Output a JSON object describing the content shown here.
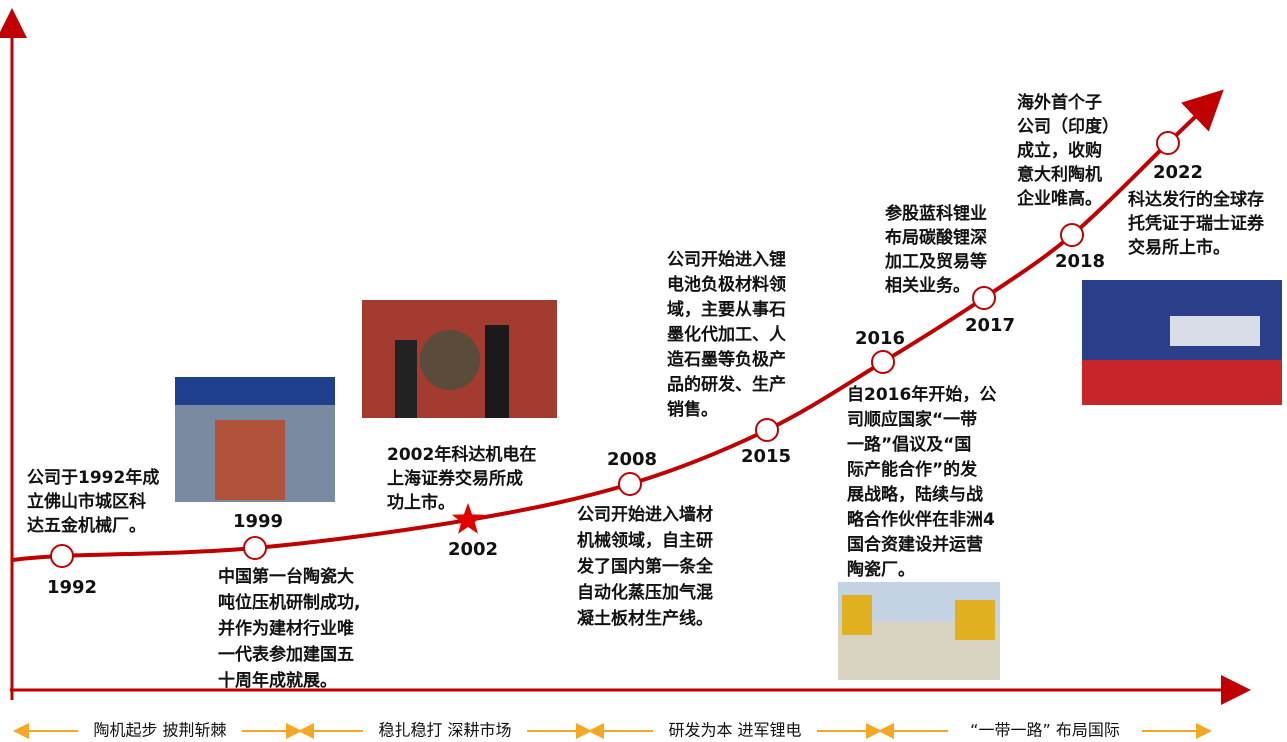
{
  "milestones": [
    {
      "year": "1992",
      "text": [
        "公司于1992年成",
        "立佛山市城区科",
        "达五金机械厂。"
      ]
    },
    {
      "year": "1999",
      "text": [
        "中国第一台陶瓷大",
        "吨位压机研制成功,",
        "并作为建材行业唯",
        "一代表参加建国五",
        "十周年成就展。"
      ]
    },
    {
      "year": "2002",
      "text": [
        "2002年科达机电在",
        "上海证券交易所成",
        "功上市。"
      ]
    },
    {
      "year": "2008",
      "text": [
        "公司开始进入墙材",
        "机械领域，自主研",
        "发了国内第一条全",
        "自动化蒸压加气混",
        "凝土板材生产线。"
      ]
    },
    {
      "year": "2015",
      "text": [
        "公司开始进入锂",
        "电池负极材料领",
        "域，主要从事石",
        "墨化代加工、人",
        "造石墨等负极产",
        "品的研发、生产",
        "销售。"
      ]
    },
    {
      "year": "2016",
      "text": [
        "自2016年开始，公",
        "司顺应国家“一带",
        "一路”倡议及“国",
        "际产能合作”的发",
        "展战略，陆续与战",
        "略合作伙伴在非洲4",
        "国合资建设并运营",
        "陶瓷厂。"
      ]
    },
    {
      "year": "2017",
      "text": [
        "参股蓝科锂业",
        "布局碳酸锂深",
        "加工及贸易等",
        "相关业务。"
      ]
    },
    {
      "year": "2018",
      "text": [
        "海外首个子",
        "公司（印度）",
        "成立，收购",
        "意大利陶机",
        "企业唯高。"
      ]
    },
    {
      "year": "2022",
      "text": [
        "科达发行的全球存",
        "托凭证于瑞士证券",
        "交易所上市。"
      ]
    }
  ],
  "phases": [
    "陶机起步 披荆斩棘",
    "稳扎稳打 深耕市场",
    "研发为本 进军锂电",
    "“一带一路” 布局国际"
  ]
}
